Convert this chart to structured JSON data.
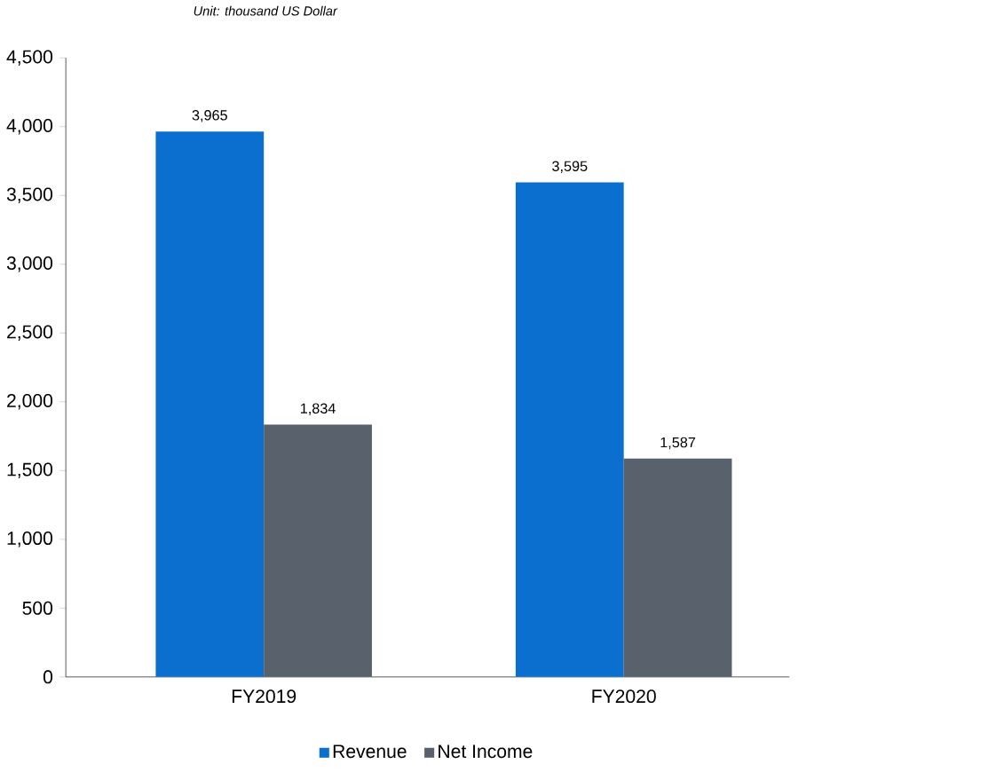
{
  "chart_data": {
    "type": "bar",
    "categories": [
      "FY2019",
      "FY2020"
    ],
    "series": [
      {
        "name": "Revenue",
        "color": "#0a6fcf",
        "values": [
          3965,
          3595
        ],
        "value_labels": [
          "3,965",
          "3,595"
        ]
      },
      {
        "name": "Net Income",
        "color": "#59616c",
        "values": [
          1834,
          1587
        ],
        "value_labels": [
          "1,834",
          "1,587"
        ]
      }
    ],
    "ylim": [
      0,
      4500
    ],
    "yticks": [
      0,
      {
        "value": 500,
        "label": "500"
      },
      {
        "value": 1000,
        "label": "1,000"
      },
      {
        "value": 1500,
        "label": "1,500"
      },
      {
        "value": 2000,
        "label": "2,000"
      },
      {
        "value": 2500,
        "label": "2,500"
      },
      {
        "value": 3000,
        "label": "3,000"
      },
      {
        "value": 3500,
        "label": "3,500"
      },
      {
        "value": 4000,
        "label": "4,000"
      },
      {
        "value": 4500,
        "label": "4,500"
      }
    ],
    "annotations": [
      "Unit:  thousand US Dollar"
    ],
    "grid": false,
    "legend": "bottom"
  }
}
